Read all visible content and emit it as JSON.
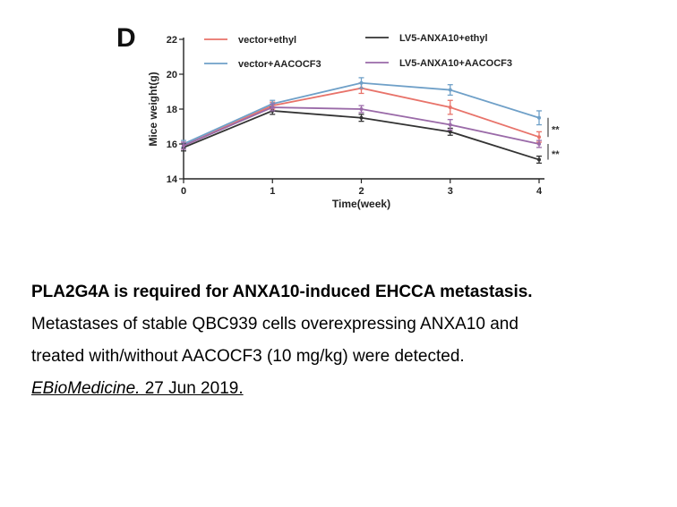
{
  "panel_label": "D",
  "chart_data": {
    "type": "line",
    "xlabel": "Time(week)",
    "ylabel": "Mice weight(g)",
    "x": [
      0,
      1,
      2,
      3,
      4
    ],
    "xlim": [
      0,
      4
    ],
    "ylim": [
      14,
      22
    ],
    "yticks": [
      14,
      16,
      18,
      20,
      22
    ],
    "xticks": [
      0,
      1,
      2,
      3,
      4
    ],
    "grid": false,
    "legend_position": "top",
    "series": [
      {
        "name": "vector+ethyl",
        "color": "#e8736a",
        "values": [
          15.9,
          18.2,
          19.2,
          18.1,
          16.4
        ],
        "errors": [
          0.2,
          0.2,
          0.3,
          0.4,
          0.3
        ]
      },
      {
        "name": "vector+AACOCF3",
        "color": "#6fa0c8",
        "values": [
          16.0,
          18.3,
          19.5,
          19.1,
          17.5
        ],
        "errors": [
          0.2,
          0.2,
          0.3,
          0.3,
          0.4
        ]
      },
      {
        "name": "LV5-ANXA10+ethyl",
        "color": "#333333",
        "values": [
          15.8,
          17.9,
          17.5,
          16.7,
          15.1
        ],
        "errors": [
          0.2,
          0.2,
          0.2,
          0.2,
          0.2
        ]
      },
      {
        "name": "LV5-ANXA10+AACOCF3",
        "color": "#9a6aa8",
        "values": [
          15.9,
          18.1,
          18.0,
          17.1,
          16.0
        ],
        "errors": [
          0.2,
          0.2,
          0.2,
          0.3,
          0.2
        ]
      }
    ],
    "annotations": [
      "**",
      "**"
    ]
  },
  "caption": {
    "title": "PLA2G4A is required for ANXA10-induced EHCCA metastasis.",
    "line1": "Metastases of stable QBC939 cells overexpressing ANXA10 and",
    "line2": "treated with/without AACOCF3 (10 mg/kg) were detected.",
    "journal": "EBioMedicine.",
    "date": " 27 Jun 2019."
  }
}
